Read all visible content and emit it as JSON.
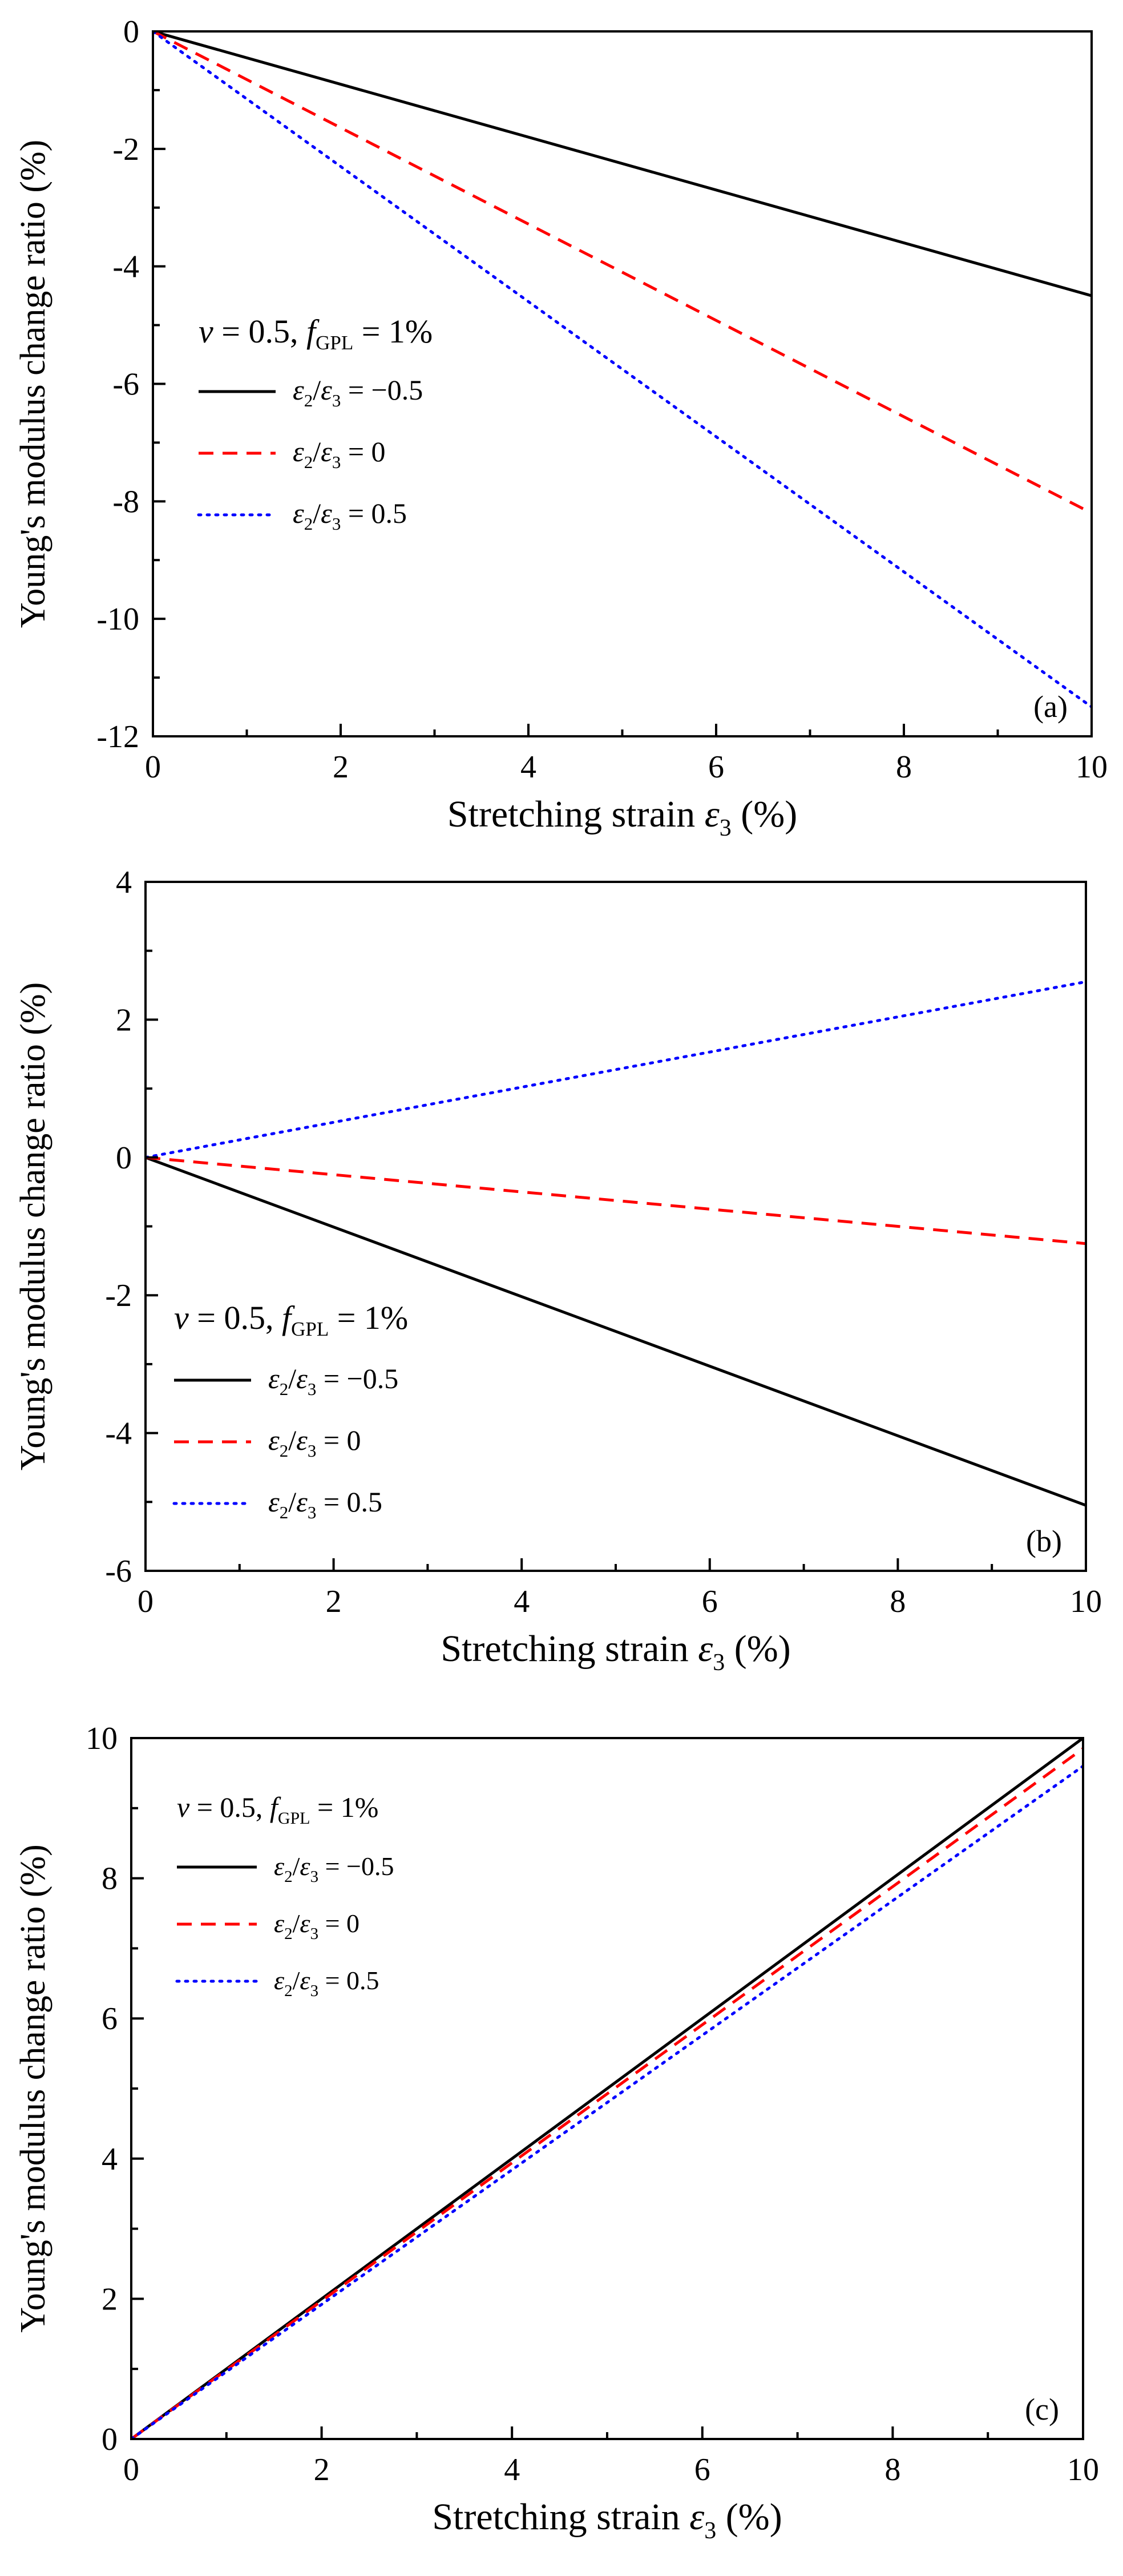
{
  "chart_data": [
    {
      "type": "line",
      "panel_label": "(a)",
      "xlabel_main": "Stretching strain ",
      "xlabel_symbol": "ε",
      "xlabel_sub": "3",
      "xlabel_unit": " (%)",
      "ylabel": "Young's modulus change ratio (%)",
      "xlim": [
        0,
        10
      ],
      "ylim": [
        -12,
        0
      ],
      "xticks": [
        0,
        2,
        4,
        6,
        8,
        10
      ],
      "yticks": [
        -12,
        -10,
        -8,
        -6,
        -4,
        -2,
        0
      ],
      "legend_title": {
        "nu": "ν",
        "nu_value": " = 0.5, ",
        "f": "f",
        "f_sub": "GPL",
        "f_value": " = 1%"
      },
      "legend_position": "left",
      "series": [
        {
          "name": "ε2/ε3 = −0.5",
          "label_value": " = −0.5",
          "color": "#000000",
          "style": "solid",
          "x": [
            0,
            10
          ],
          "y": [
            0,
            -4.5
          ]
        },
        {
          "name": "ε2/ε3 = 0",
          "label_value": " = 0",
          "color": "#ff0000",
          "style": "dashed",
          "x": [
            0,
            10
          ],
          "y": [
            0,
            -8.2
          ]
        },
        {
          "name": "ε2/ε3 = 0.5",
          "label_value": " = 0.5",
          "color": "#0000ff",
          "style": "dotted",
          "x": [
            0,
            10
          ],
          "y": [
            0,
            -11.5
          ]
        }
      ]
    },
    {
      "type": "line",
      "panel_label": "(b)",
      "xlabel_main": "Stretching strain ",
      "xlabel_symbol": "ε",
      "xlabel_sub": "3",
      "xlabel_unit": " (%)",
      "ylabel": "Young's modulus change ratio (%)",
      "xlim": [
        0,
        10
      ],
      "ylim": [
        -6,
        4
      ],
      "xticks": [
        0,
        2,
        4,
        6,
        8,
        10
      ],
      "yticks": [
        -6,
        -4,
        -2,
        0,
        2,
        4
      ],
      "legend_title": {
        "nu": "ν",
        "nu_value": " = 0.5, ",
        "f": "f",
        "f_sub": "GPL",
        "f_value": " = 1%"
      },
      "legend_position": "bottom-left",
      "series": [
        {
          "name": "ε2/ε3 = −0.5",
          "label_value": " = −0.5",
          "color": "#000000",
          "style": "solid",
          "x": [
            0,
            10
          ],
          "y": [
            0,
            -5.05
          ]
        },
        {
          "name": "ε2/ε3 = 0",
          "label_value": " = 0",
          "color": "#ff0000",
          "style": "dashed",
          "x": [
            0,
            10
          ],
          "y": [
            0,
            -1.25
          ]
        },
        {
          "name": "ε2/ε3 = 0.5",
          "label_value": " = 0.5",
          "color": "#0000ff",
          "style": "dotted",
          "x": [
            0,
            10
          ],
          "y": [
            0,
            2.55
          ]
        }
      ]
    },
    {
      "type": "line",
      "panel_label": "(c)",
      "xlabel_main": "Stretching strain ",
      "xlabel_symbol": "ε",
      "xlabel_sub": "3",
      "xlabel_unit": " (%)",
      "ylabel": "Young's modulus change ratio (%)",
      "xlim": [
        0,
        10
      ],
      "ylim": [
        0,
        10
      ],
      "xticks": [
        0,
        2,
        4,
        6,
        8,
        10
      ],
      "yticks": [
        0,
        2,
        4,
        6,
        8,
        10
      ],
      "legend_title": {
        "nu": "ν",
        "nu_value": " = 0.5, ",
        "f": "f",
        "f_sub": "GPL",
        "f_value": " = 1%"
      },
      "legend_position": "top-left",
      "series": [
        {
          "name": "ε2/ε3 = −0.5",
          "label_value": " = −0.5",
          "color": "#000000",
          "style": "solid",
          "x": [
            0,
            10
          ],
          "y": [
            0,
            10.0
          ]
        },
        {
          "name": "ε2/ε3 = 0",
          "label_value": " = 0",
          "color": "#ff0000",
          "style": "dashed",
          "x": [
            0,
            10
          ],
          "y": [
            0,
            9.85
          ]
        },
        {
          "name": "ε2/ε3 = 0.5",
          "label_value": " = 0.5",
          "color": "#0000ff",
          "style": "dotted",
          "x": [
            0,
            10
          ],
          "y": [
            0,
            9.6
          ]
        }
      ]
    }
  ]
}
